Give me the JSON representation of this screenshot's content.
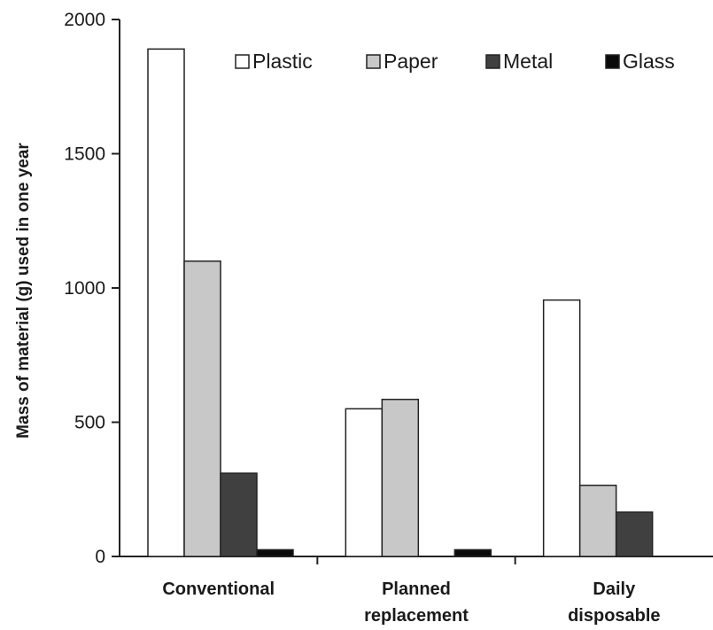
{
  "chart_data": {
    "type": "bar",
    "title": "",
    "xlabel": "",
    "ylabel": "Mass of material (g) used in one year",
    "ylim": [
      0,
      2000
    ],
    "yticks": [
      0,
      500,
      1000,
      1500,
      2000
    ],
    "categories": [
      [
        "Conventional"
      ],
      [
        "Planned",
        "replacement"
      ],
      [
        "Daily",
        "disposable"
      ]
    ],
    "series": [
      {
        "name": "Plastic",
        "color": "#ffffff",
        "values": [
          1890,
          550,
          955
        ]
      },
      {
        "name": "Paper",
        "color": "#c8c8c8",
        "values": [
          1100,
          585,
          265
        ]
      },
      {
        "name": "Metal",
        "color": "#404040",
        "values": [
          310,
          0,
          165
        ]
      },
      {
        "name": "Glass",
        "color": "#0a0a0a",
        "values": [
          25,
          25,
          0
        ]
      }
    ],
    "legend_position": "top-right",
    "grid": false
  }
}
